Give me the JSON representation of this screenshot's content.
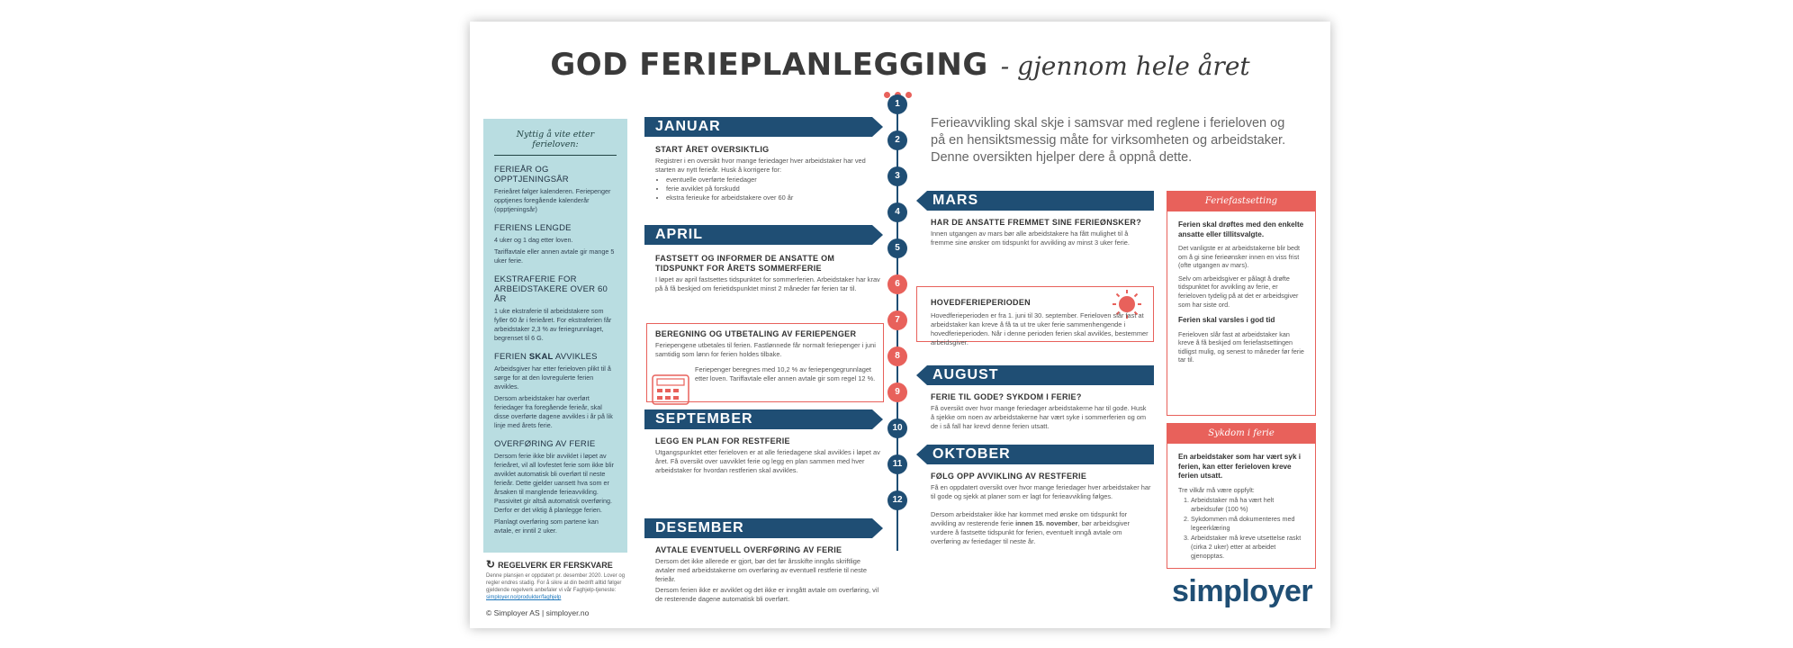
{
  "title": {
    "main": "GOD FERIEPLANLEGGING",
    "sub": "- gjennom hele året"
  },
  "info_panel": {
    "title": "Nyttig å vite etter ferieloven:",
    "sections": [
      {
        "heading": "FERIEÅR OG OPPTJENINGSÅR",
        "texts": [
          "Ferieåret følger kalenderen. Feriepenger opptjenes foregående kalenderår (opptjeningsår)"
        ]
      },
      {
        "heading": "FERIENS LENGDE",
        "texts": [
          "4 uker og 1 dag etter loven.",
          "Tariffavtale eller annen avtale gir mange 5 uker ferie."
        ]
      },
      {
        "heading": "EKSTRAFERIE FOR ARBEIDSTAKERE OVER 60 ÅR",
        "texts": [
          "1 uke ekstraferie til arbeidstakere som fyller 60 år i ferieåret. For ekstraferien får arbeidstaker 2,3 % av feriegrunnlaget, begrenset til 6 G."
        ]
      },
      {
        "heading_pre": "FERIEN ",
        "heading_bold": "SKAL",
        "heading_post": " AVVIKLES",
        "texts": [
          "Arbeidsgiver har etter ferieloven plikt til å sørge for at den lovregulerte ferien avvikles.",
          "Dersom arbeidstaker har overført feriedager fra foregående ferieår, skal disse overførte dagene avvikles i år på lik linje med årets ferie."
        ]
      },
      {
        "heading": "OVERFØRING AV FERIE",
        "texts": [
          "Dersom ferie ikke blir avviklet i løpet av ferieåret, vil all lovfestet ferie som ikke blir avviklet automatisk bli overført til neste ferieår. Dette gjelder uansett hva som er årsaken til manglende ferieavvikling. Passivitet gir altså automatisk overføring. Derfor er det viktig å planlegge ferien.",
          "Planlagt overføring som partene kan avtale, er inntil 2 uker."
        ]
      }
    ]
  },
  "regelverk": {
    "heading": "REGELVERK ER FERSKVARE",
    "text": "Denne plansjen er oppdatert pr. desember 2020. Lover og regler endres stadig. For å sikre at din bedrift alltid følger gjeldende regelverk anbefaler vi vår Faghjelp-tjeneste:",
    "link": "simployer.no/produkter/faghjelp"
  },
  "copyright": "© Simployer AS | simployer.no",
  "intro": "Ferieavvikling skal skje i samsvar med reglene i ferieloven og på en hensiktsmessig måte for virksomheten og arbeidstaker. Denne oversikten hjelper dere å oppnå dette.",
  "timeline_numbers": [
    "1",
    "2",
    "3",
    "4",
    "5",
    "6",
    "7",
    "8",
    "9",
    "10",
    "11",
    "12"
  ],
  "months": {
    "januar": {
      "label": "JANUAR",
      "heading": "START ÅRET OVERSIKTLIG",
      "text": "Registrer i en oversikt hvor mange feriedager hver arbeidstaker har ved starten av nytt ferieår. Husk å korrigere for:",
      "bullets": [
        "eventuelle overførte feriedager",
        "ferie avviklet på forskudd",
        "ekstra ferieuke for arbeidstakere over 60 år"
      ]
    },
    "april": {
      "label": "APRIL",
      "heading": "FASTSETT OG INFORMER DE ANSATTE OM TIDSPUNKT FOR ÅRETS SOMMERFERIE",
      "text": "I løpet av april fastsettes tidspunktet for sommerferien. Arbeidstaker har krav på å få beskjed om ferietidspunktet minst 2 måneder før ferien tar til."
    },
    "feriepenger": {
      "heading": "BEREGNING OG UTBETALING AV FERIEPENGER",
      "text": "Feriepengene utbetales til ferien. Fastlønnede får normalt feriepenger i juni samtidig som lønn for ferien holdes tilbake.",
      "text2": "Feriepenger beregnes med 10,2 % av feriepengegrunnlaget etter loven. Tariffavtale eller annen avtale gir som regel 12 %."
    },
    "september": {
      "label": "SEPTEMBER",
      "heading": "LEGG EN PLAN FOR RESTFERIE",
      "text": "Utgangspunktet etter ferieloven er at alle feriedagene skal avvikles i løpet av året. Få oversikt over uavviklet ferie og legg en plan sammen med hver arbeidstaker for hvordan restferien skal avvikles."
    },
    "desember": {
      "label": "DESEMBER",
      "heading": "AVTALE EVENTUELL OVERFØRING AV FERIE",
      "text": "Dersom det ikke allerede er gjort, bør det før årsskifte inngås skriftlige avtaler med arbeidstakerne om overføring av eventuell restferie til neste ferieår.",
      "text2": "Dersom ferien ikke er avviklet og det ikke er inngått avtale om overføring, vil de resterende dagene automatisk bli overført."
    },
    "mars": {
      "label": "MARS",
      "heading": "HAR DE ANSATTE FREMMET SINE FERIEØNSKER?",
      "text": "Innen utgangen av mars bør alle arbeidstakere ha fått mulighet til å fremme sine ønsker om tidspunkt for avvikling av minst 3 uker ferie."
    },
    "hovedferie": {
      "heading": "HOVEDFERIEPERIODEN",
      "text": "Hovedferieperioden er fra 1. juni til 30. september. Ferieloven slår fast at arbeidstaker kan kreve å få ta ut tre uker ferie sammenhengende i hovedferieperioden. Når i denne perioden ferien skal avvikles, bestemmer arbeidsgiver."
    },
    "august": {
      "label": "AUGUST",
      "heading": "FERIE TIL GODE? SYKDOM I FERIE?",
      "text": "Få oversikt over hvor mange feriedager arbeidstakerne har til gode. Husk å sjekke om noen av arbeidstakerne har vært syke i sommerferien og om de i så fall har krevd denne ferien utsatt."
    },
    "oktober": {
      "label": "OKTOBER",
      "heading": "FØLG OPP AVVIKLING AV RESTFERIE",
      "text": "Få en oppdatert oversikt over hvor mange feriedager hver arbeidstaker har til gode og sjekk at planer som er lagt for ferieavvikling følges.",
      "text2_pre": "Dersom arbeidstaker ikke har kommet med ønske om tidspunkt for avvikling av resterende ferie ",
      "text2_bold": "innen 15. november",
      "text2_post": ", bør arbeidsgiver vurdere å fastsette tidspunkt for ferien, eventuelt inngå avtale om overføring av feriedager til neste år."
    }
  },
  "feriefastsetting": {
    "title": "Feriefastsetting",
    "bold1": "Ferien skal drøftes med den enkelte ansatte eller tillitsvalgte.",
    "text1": "Det vanligste er at arbeidstakerne blir bedt om å gi sine ferieønsker innen en viss frist (ofte utgangen av mars).",
    "text2": "Selv om arbeidsgiver er pålagt å drøfte tidspunktet for avvikling av ferie, er ferieloven tydelig på at det er arbeidsgiver som har siste ord.",
    "bold2": "Ferien skal varsles i god tid",
    "text3": "Ferieloven slår fast at arbeidstaker kan kreve å få beskjed om feriefastsettingen tidligst mulig, og senest to måneder før ferie tar til."
  },
  "sykdom": {
    "title": "Sykdom i ferie",
    "bold": "En arbeidstaker som har vært syk i ferien, kan etter ferieloven kreve ferien utsatt.",
    "text": "Tre vilkår må være oppfylt:",
    "items": [
      "Arbeidstaker må ha vært helt arbeidsufør (100 %)",
      "Sykdommen må dokumenteres med legeerklæring",
      "Arbeidstaker må kreve utsettelse raskt (cirka 2 uker) etter at arbeidet gjenopptas."
    ]
  },
  "logo": "simployer",
  "colors": {
    "navy": "#1f4e74",
    "coral": "#e8615b",
    "panel": "#b9dde1"
  }
}
